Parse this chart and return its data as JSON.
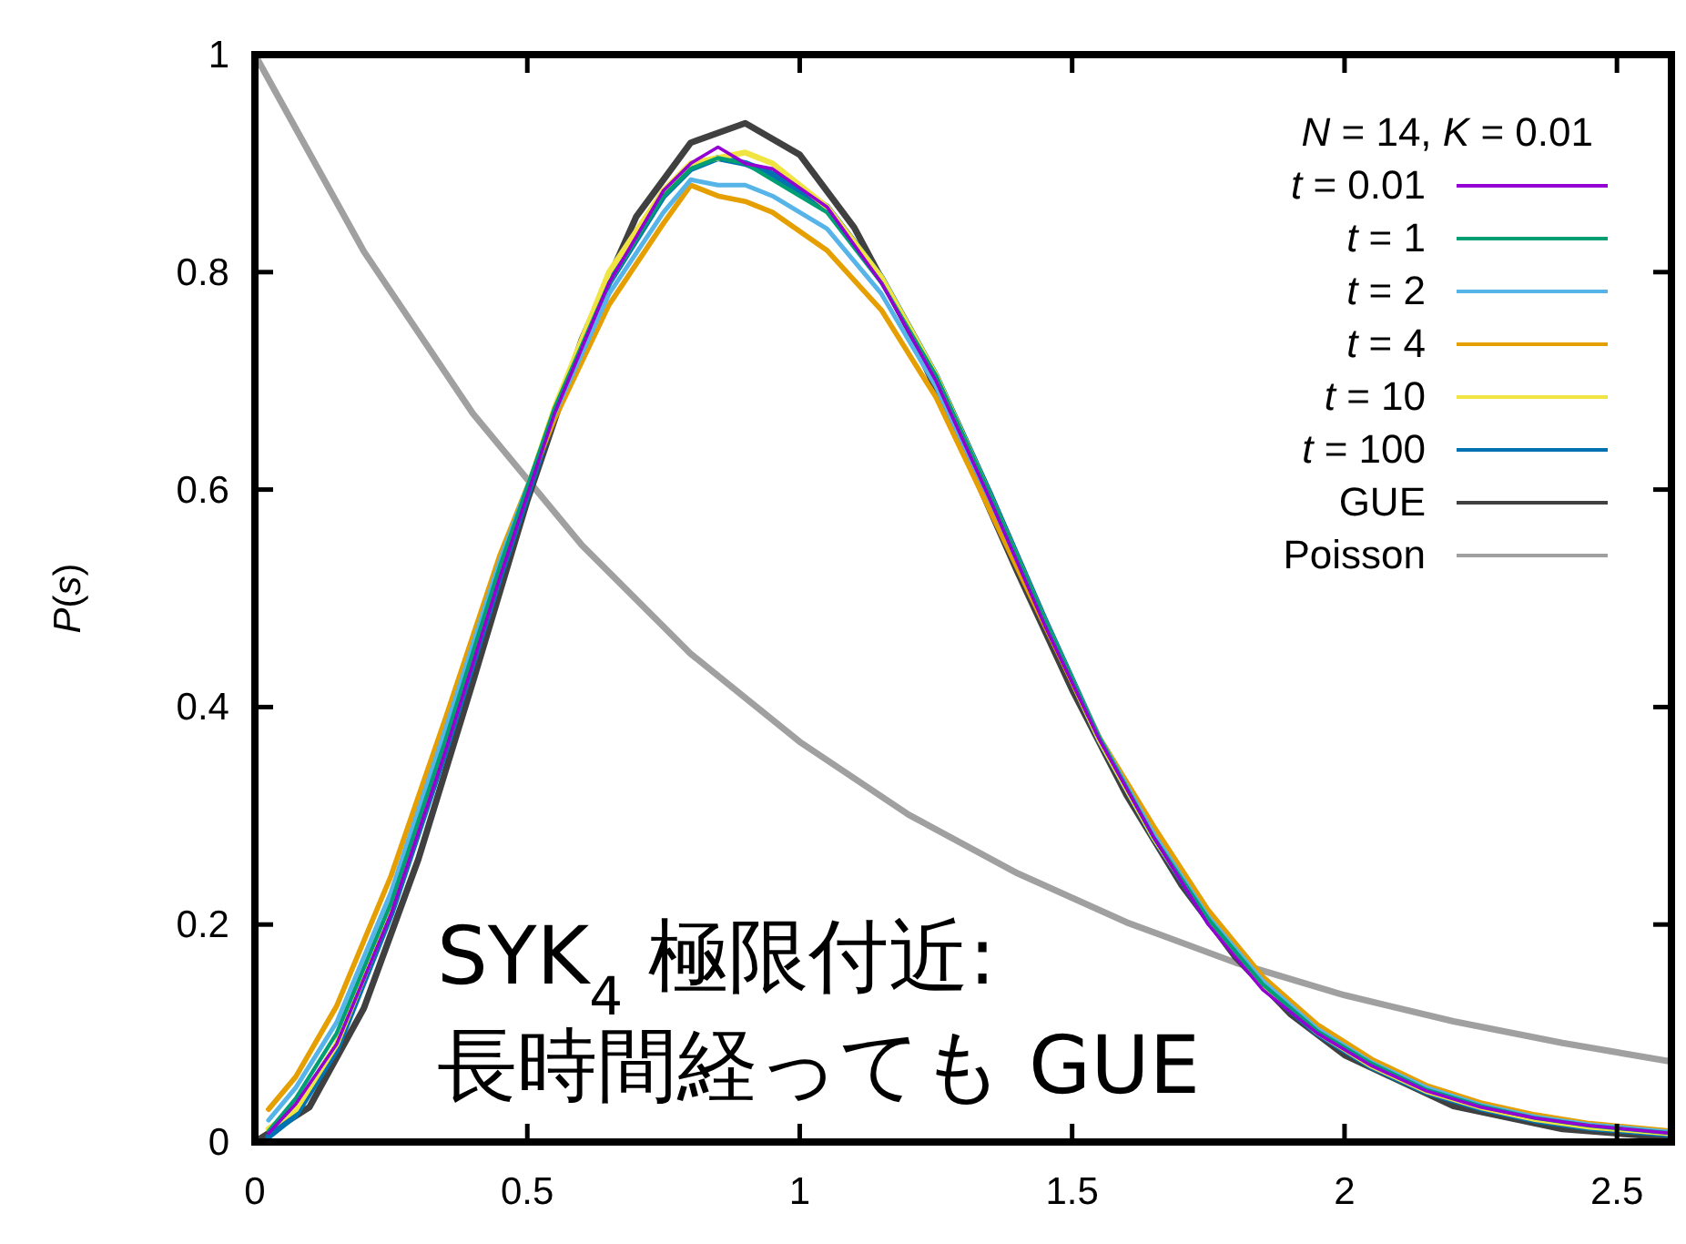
{
  "chart_data": {
    "type": "line",
    "x": [
      0.025,
      0.075,
      0.15,
      0.25,
      0.35,
      0.45,
      0.55,
      0.65,
      0.75,
      0.8,
      0.85,
      0.9,
      0.95,
      1.05,
      1.15,
      1.25,
      1.35,
      1.45,
      1.55,
      1.65,
      1.75,
      1.85,
      1.95,
      2.05,
      2.15,
      2.25,
      2.35,
      2.45,
      2.6
    ],
    "series": [
      {
        "name": "*t* = 0.01",
        "color": "#9400d3",
        "values": [
          0.008,
          0.035,
          0.09,
          0.21,
          0.36,
          0.52,
          0.67,
          0.79,
          0.875,
          0.9,
          0.915,
          0.9,
          0.895,
          0.86,
          0.79,
          0.7,
          0.59,
          0.475,
          0.37,
          0.28,
          0.2,
          0.14,
          0.1,
          0.07,
          0.047,
          0.032,
          0.022,
          0.015,
          0.008
        ]
      },
      {
        "name": "*t* = 1",
        "color": "#009e73",
        "values": [
          0.01,
          0.04,
          0.1,
          0.22,
          0.37,
          0.53,
          0.675,
          0.79,
          0.87,
          0.895,
          0.905,
          0.9,
          0.885,
          0.855,
          0.79,
          0.705,
          0.595,
          0.48,
          0.372,
          0.28,
          0.205,
          0.145,
          0.102,
          0.072,
          0.048,
          0.033,
          0.022,
          0.015,
          0.008
        ]
      },
      {
        "name": "*t* = 2",
        "color": "#56b4e9",
        "values": [
          0.02,
          0.05,
          0.11,
          0.23,
          0.38,
          0.535,
          0.67,
          0.78,
          0.855,
          0.885,
          0.88,
          0.88,
          0.87,
          0.84,
          0.78,
          0.695,
          0.59,
          0.478,
          0.372,
          0.283,
          0.207,
          0.148,
          0.104,
          0.073,
          0.05,
          0.034,
          0.023,
          0.016,
          0.009
        ]
      },
      {
        "name": "*t* = 4",
        "color": "#e69f00",
        "values": [
          0.03,
          0.06,
          0.125,
          0.245,
          0.39,
          0.54,
          0.665,
          0.77,
          0.845,
          0.88,
          0.87,
          0.865,
          0.855,
          0.82,
          0.765,
          0.685,
          0.58,
          0.475,
          0.372,
          0.29,
          0.213,
          0.152,
          0.108,
          0.076,
          0.052,
          0.036,
          0.025,
          0.017,
          0.01
        ]
      },
      {
        "name": "*t* = 10",
        "color": "#f0e442",
        "values": [
          0.012,
          0.03,
          0.09,
          0.215,
          0.365,
          0.525,
          0.675,
          0.8,
          0.875,
          0.9,
          0.905,
          0.91,
          0.9,
          0.86,
          0.795,
          0.705,
          0.593,
          0.478,
          0.37,
          0.28,
          0.205,
          0.145,
          0.101,
          0.07,
          0.047,
          0.032,
          0.021,
          0.014,
          0.008
        ]
      },
      {
        "name": "*t* = 100",
        "color": "#0072b2",
        "values": [
          0.005,
          0.025,
          0.085,
          0.21,
          0.36,
          0.52,
          0.67,
          0.79,
          0.87,
          0.895,
          0.905,
          0.9,
          0.89,
          0.86,
          0.795,
          0.705,
          0.595,
          0.48,
          0.37,
          0.28,
          0.203,
          0.143,
          0.1,
          0.069,
          0.046,
          0.031,
          0.02,
          0.013,
          0.007
        ]
      },
      {
        "name": "GUE",
        "color": "#404040",
        "x": [
          0,
          0.1,
          0.2,
          0.3,
          0.4,
          0.5,
          0.6,
          0.7,
          0.8,
          0.9,
          1.0,
          1.1,
          1.2,
          1.3,
          1.4,
          1.5,
          1.6,
          1.7,
          1.8,
          1.9,
          2.0,
          2.2,
          2.4,
          2.6
        ],
        "values": [
          0,
          0.032,
          0.123,
          0.26,
          0.423,
          0.59,
          0.738,
          0.851,
          0.919,
          0.937,
          0.908,
          0.841,
          0.747,
          0.637,
          0.524,
          0.416,
          0.319,
          0.237,
          0.17,
          0.118,
          0.08,
          0.033,
          0.012,
          0.004
        ]
      },
      {
        "name": "Poisson",
        "color": "#a0a0a0",
        "x": [
          0,
          0.2,
          0.4,
          0.6,
          0.8,
          1.0,
          1.2,
          1.4,
          1.6,
          1.8,
          2.0,
          2.2,
          2.4,
          2.6
        ],
        "values": [
          1,
          0.819,
          0.67,
          0.549,
          0.449,
          0.368,
          0.301,
          0.247,
          0.202,
          0.165,
          0.135,
          0.111,
          0.091,
          0.074
        ]
      }
    ],
    "xlim": [
      0,
      2.6
    ],
    "ylim": [
      0,
      1
    ],
    "xticks": [
      0,
      0.5,
      1,
      1.5,
      2,
      2.5
    ],
    "yticks": [
      0,
      0.2,
      0.4,
      0.6,
      0.8,
      1
    ],
    "ylabel": "*P*(*s*)",
    "legend_title": "*N* = 14, *K* = 0.01",
    "legend": "top right",
    "grid": false,
    "marker": "none",
    "line_style": "solid",
    "annotations": [
      "SYK$_{4}$ 極限付近:\n長時間経っても GUE"
    ]
  }
}
